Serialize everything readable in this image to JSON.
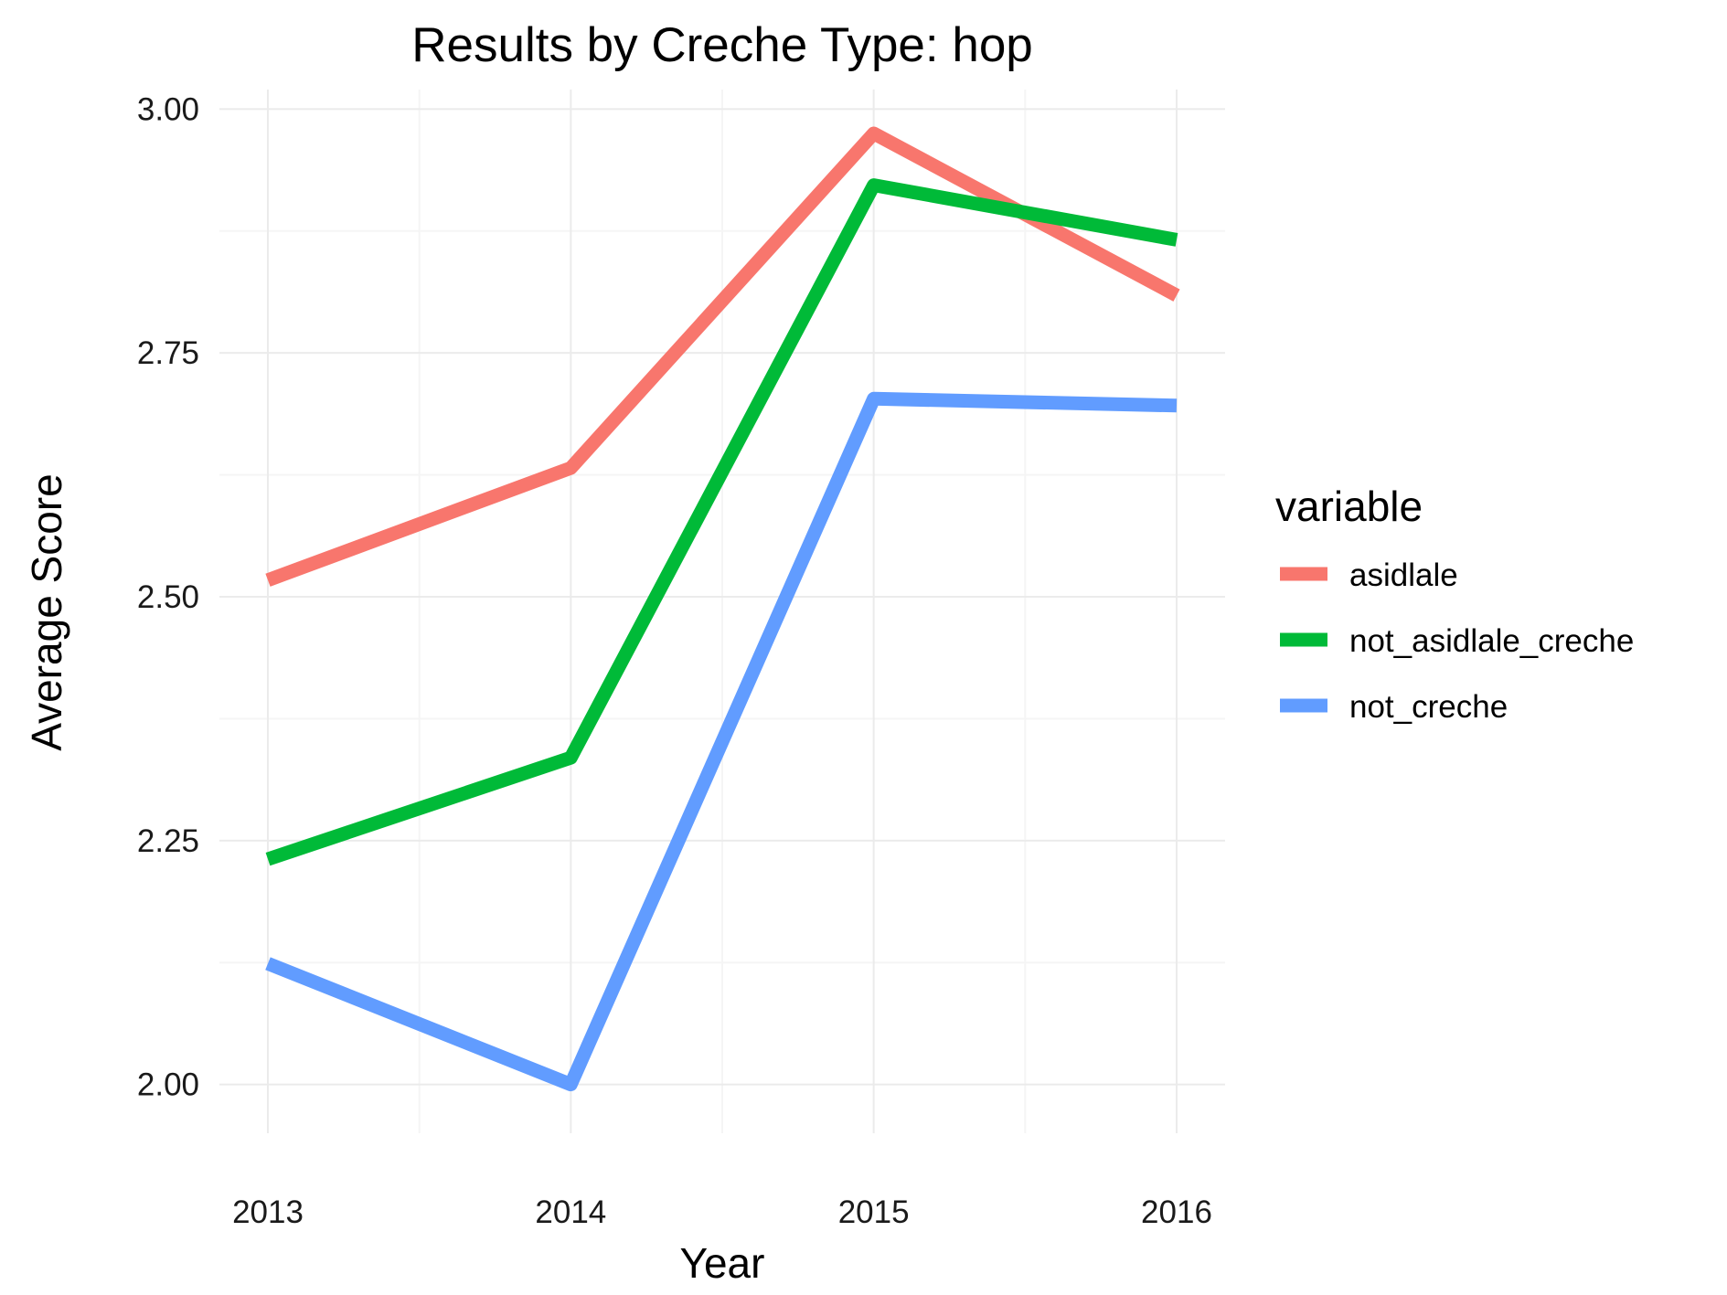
{
  "chart_data": {
    "type": "line",
    "title": "Results by Creche Type: hop",
    "xlabel": "Year",
    "ylabel": "Average Score",
    "x": [
      2013,
      2014,
      2015,
      2016
    ],
    "x_tick_labels": [
      "2013",
      "2014",
      "2015",
      "2016"
    ],
    "y_ticks": [
      2.0,
      2.25,
      2.5,
      2.75,
      3.0
    ],
    "y_tick_labels": [
      "2.00",
      "2.25",
      "2.50",
      "2.75",
      "3.00"
    ],
    "ylim": [
      1.95,
      3.02
    ],
    "xlim": [
      2012.84,
      2016.16
    ],
    "grid": true,
    "legend": {
      "title": "variable",
      "position": "right"
    },
    "series": [
      {
        "name": "asidlale",
        "color": "#F8766D",
        "values": [
          2.517,
          2.632,
          2.975,
          2.809
        ]
      },
      {
        "name": "not_asidlale_creche",
        "color": "#00BA38",
        "values": [
          2.231,
          2.335,
          2.922,
          2.866
        ]
      },
      {
        "name": "not_creche",
        "color": "#619CFF",
        "values": [
          2.124,
          2.0,
          2.703,
          2.696
        ]
      }
    ]
  }
}
